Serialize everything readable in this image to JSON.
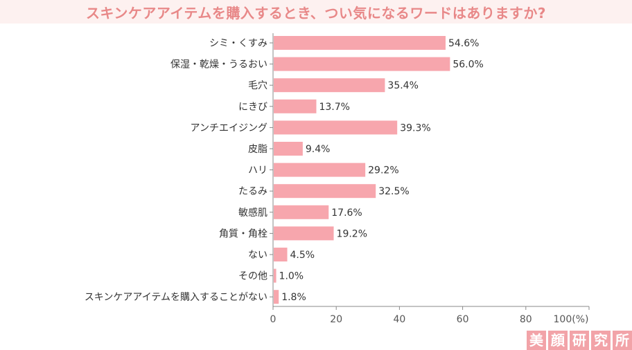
{
  "title": "スキンケアアイテムを購入するとき、つい気になるワードはありますか?",
  "colors": {
    "bar": "#f7a6ad",
    "title": "#e88888",
    "title_bg": "#fdf1f0",
    "logo": "#f2a3a8"
  },
  "logo": {
    "chars": [
      "美",
      "顔",
      "研",
      "究",
      "所"
    ]
  },
  "chart_data": {
    "type": "bar",
    "orientation": "horizontal",
    "title": "スキンケアアイテムを購入するとき、つい気になるワードはありますか?",
    "categories": [
      "シミ・くすみ",
      "保湿・乾燥・うるおい",
      "毛穴",
      "にきび",
      "アンチエイジング",
      "皮脂",
      "ハリ",
      "たるみ",
      "敏感肌",
      "角質・角栓",
      "ない",
      "その他",
      "スキンケアアイテムを購入することがない"
    ],
    "values": [
      54.6,
      56.0,
      35.4,
      13.7,
      39.3,
      9.4,
      29.2,
      32.5,
      17.6,
      19.2,
      4.5,
      1.0,
      1.8
    ],
    "value_labels": [
      "54.6%",
      "56.0%",
      "35.4%",
      "13.7%",
      "39.3%",
      "9.4%",
      "29.2%",
      "32.5%",
      "17.6%",
      "19.2%",
      "4.5%",
      "1.0%",
      "1.8%"
    ],
    "xlim": [
      0,
      100
    ],
    "xticks": [
      0,
      20,
      40,
      60,
      80,
      100
    ],
    "xtick_labels": [
      "0",
      "20",
      "40",
      "60",
      "80",
      "100(%)"
    ],
    "grid": false,
    "legend": "none"
  }
}
